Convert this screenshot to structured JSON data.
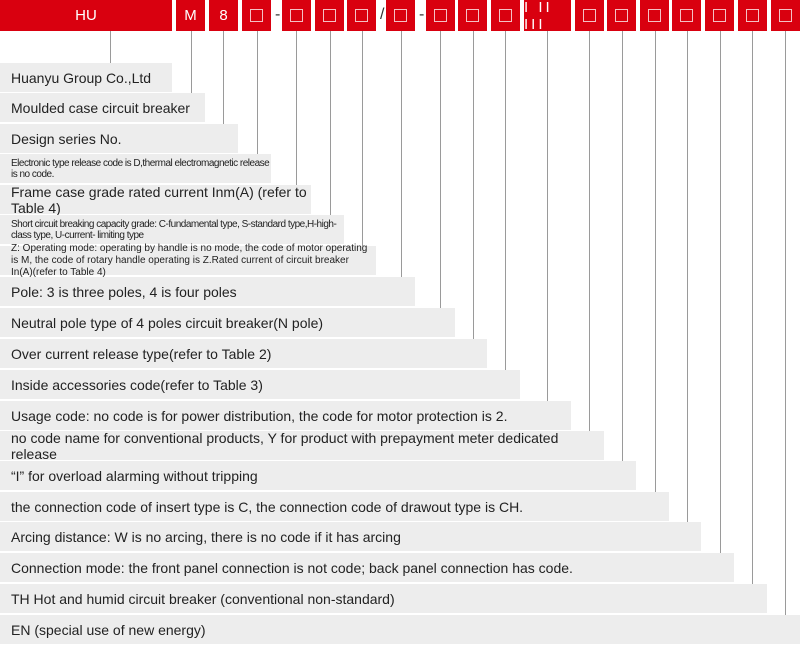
{
  "brand_color": "#d9000f",
  "code_boxes": [
    {
      "label": "HU"
    },
    {
      "label": "M"
    },
    {
      "label": "8"
    },
    {
      "label": "",
      "icon": "square-placeholder"
    },
    {
      "label": "",
      "icon": "square-placeholder"
    },
    {
      "label": "",
      "icon": "square-placeholder"
    },
    {
      "label": "",
      "icon": "square-placeholder"
    },
    {
      "label": "",
      "icon": "square-placeholder"
    },
    {
      "label": "",
      "icon": "square-placeholder"
    },
    {
      "label": "",
      "icon": "square-placeholder"
    },
    {
      "label": "",
      "icon": "square-placeholder"
    },
    {
      "label": "I II III"
    },
    {
      "label": "",
      "icon": "square-placeholder"
    },
    {
      "label": "",
      "icon": "square-placeholder"
    },
    {
      "label": "",
      "icon": "square-placeholder"
    },
    {
      "label": "",
      "icon": "square-placeholder"
    },
    {
      "label": "",
      "icon": "square-placeholder"
    },
    {
      "label": "",
      "icon": "square-placeholder"
    },
    {
      "label": "",
      "icon": "square-placeholder"
    }
  ],
  "separators": [
    "-",
    "/",
    "-"
  ],
  "descriptions": [
    "Huanyu Group Co.,Ltd",
    "Moulded case circuit breaker",
    "Design series No.",
    "Electronic type release code is D,thermal electromagnetic release is no code.",
    "Frame case grade rated current Inm(A) (refer to Table 4)",
    "Short circuit breaking capacity grade: C-fundamental type, S-standard type,H-high-class type, U-current- limiting type",
    "Z: Operating mode: operating by handle is no mode, the code of motor operating is M, the code of rotary handle operating is Z.Rated current of circuit breaker In(A)(refer to Table 4)",
    "Pole: 3 is three poles, 4 is four poles",
    "Neutral pole type of 4 poles circuit breaker(N pole)",
    "Over current release type(refer to Table 2)",
    "Inside accessories code(refer to Table 3)",
    "Usage code: no code is for power distribution, the code for motor protection is 2.",
    "no code name for conventional products,  Y for product with prepayment meter dedicated release",
    " “I” for overload alarming without tripping",
    "the connection code of insert type is C, the connection code of drawout type is CH.",
    "Arcing distance: W is no arcing, there is no code if it has arcing",
    "Connection mode: the front panel connection is not code; back panel connection has code.",
    "TH Hot and humid circuit breaker (conventional non-standard)",
    "EN (special use of new energy)"
  ]
}
